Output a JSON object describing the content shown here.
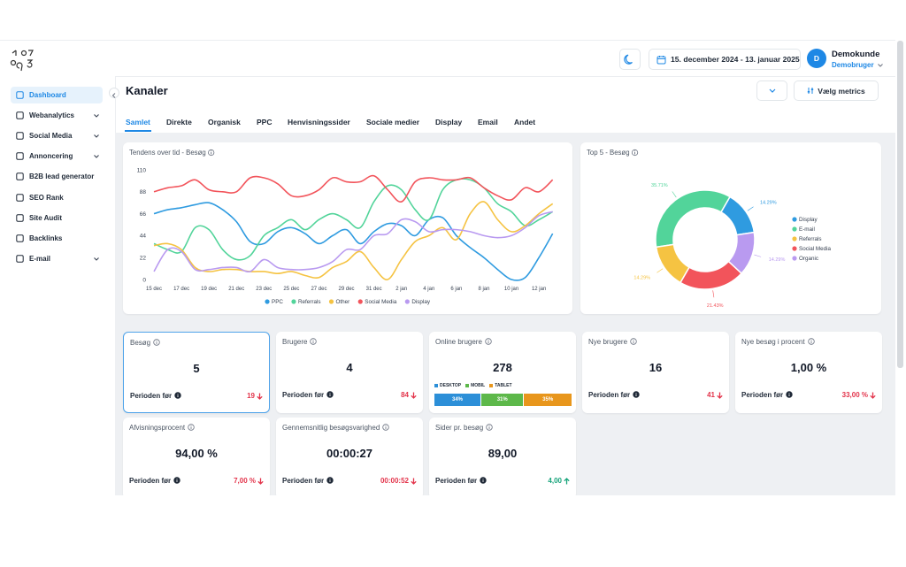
{
  "header": {
    "date_range": "15. december 2024 - 13. januar 2025",
    "avatar": "D",
    "user": "Demokunde",
    "role": "Demobruger"
  },
  "sidebar": [
    {
      "label": "Dashboard",
      "active": true
    },
    {
      "label": "Webanalytics",
      "expandable": true
    },
    {
      "label": "Social Media",
      "expandable": true
    },
    {
      "label": "Annoncering",
      "expandable": true
    },
    {
      "label": "B2B lead generator"
    },
    {
      "label": "SEO Rank"
    },
    {
      "label": "Site Audit"
    },
    {
      "label": "Backlinks"
    },
    {
      "label": "E-mail",
      "expandable": true
    }
  ],
  "page": {
    "title": "Kanaler",
    "metrics_button": "Vælg metrics"
  },
  "tabs": [
    {
      "label": "Samlet",
      "active": true
    },
    {
      "label": "Direkte"
    },
    {
      "label": "Organisk"
    },
    {
      "label": "PPC"
    },
    {
      "label": "Henvisningssider"
    },
    {
      "label": "Sociale medier"
    },
    {
      "label": "Display"
    },
    {
      "label": "Email"
    },
    {
      "label": "Andet"
    }
  ],
  "chart_data": [
    {
      "type": "line",
      "title": "Tendens over tid - Besøg",
      "x": [
        "15 dec",
        null,
        "17 dec",
        null,
        "19 dec",
        null,
        "21 dec",
        null,
        "23 dec",
        null,
        "25 dec",
        null,
        "27 dec",
        null,
        "29 dec",
        null,
        "31 dec",
        null,
        "2 jan",
        null,
        "4 jan",
        null,
        "6 jan",
        null,
        "8 jan",
        null,
        "10 jan",
        null,
        "12 jan",
        null
      ],
      "ylim": [
        0,
        110
      ],
      "yticks": [
        0,
        22,
        44,
        66,
        88,
        110
      ],
      "grid": false,
      "legend": "bottom",
      "series": [
        {
          "name": "PPC",
          "color": "#2f9be0",
          "values": [
            66,
            70,
            72,
            75,
            77,
            70,
            58,
            38,
            36,
            48,
            52,
            46,
            36,
            44,
            50,
            36,
            48,
            56,
            54,
            44,
            60,
            62,
            44,
            32,
            22,
            10,
            0,
            2,
            22,
            46
          ]
        },
        {
          "name": "Referrals",
          "color": "#52d49a",
          "values": [
            36,
            30,
            28,
            52,
            50,
            30,
            20,
            24,
            44,
            52,
            60,
            50,
            60,
            66,
            60,
            52,
            78,
            94,
            90,
            70,
            60,
            90,
            100,
            100,
            92,
            76,
            68,
            54,
            60,
            68
          ]
        },
        {
          "name": "Other",
          "color": "#f5c342",
          "values": [
            34,
            36,
            30,
            12,
            8,
            10,
            10,
            8,
            8,
            6,
            8,
            4,
            2,
            12,
            18,
            28,
            12,
            0,
            20,
            38,
            44,
            52,
            40,
            66,
            78,
            60,
            48,
            54,
            66,
            76
          ]
        },
        {
          "name": "Social Media",
          "color": "#f2545b",
          "values": [
            88,
            92,
            94,
            100,
            90,
            88,
            88,
            102,
            102,
            96,
            84,
            84,
            90,
            102,
            98,
            98,
            104,
            90,
            78,
            98,
            102,
            100,
            100,
            102,
            92,
            84,
            80,
            92,
            88,
            100
          ]
        },
        {
          "name": "Display",
          "color": "#b99af0",
          "values": [
            8,
            30,
            28,
            10,
            10,
            12,
            12,
            8,
            20,
            12,
            10,
            10,
            12,
            18,
            30,
            30,
            44,
            46,
            60,
            58,
            48,
            50,
            50,
            48,
            44,
            42,
            44,
            52,
            64,
            68
          ]
        }
      ]
    },
    {
      "type": "pie",
      "title": "Top 5 - Besøg",
      "donut": true,
      "legend": "right",
      "categories": [
        "Display",
        "E-mail",
        "Referrals",
        "Social Media",
        "Organic"
      ],
      "values": [
        14.29,
        35.71,
        14.29,
        21.43,
        14.29
      ],
      "value_labels": [
        "14.29%",
        "35.71%",
        "14.29%",
        "21.43%",
        "14.29%"
      ],
      "colors": [
        "#2f9be0",
        "#52d49a",
        "#f5c342",
        "#f2545b",
        "#b99af0"
      ]
    }
  ],
  "cards": [
    {
      "title": "Besøg",
      "value": 5,
      "previous_label": "Perioden før",
      "previous": 19,
      "trend": "down",
      "selected": true
    },
    {
      "title": "Brugere",
      "value": 4,
      "previous_label": "Perioden før",
      "previous": 84,
      "trend": "down"
    },
    {
      "title": "Online brugere",
      "value": 278,
      "bar": {
        "labels": [
          "DESKTOP",
          "MOBIL",
          "TABLET"
        ],
        "colors": [
          "#2c8fd8",
          "#5db84a",
          "#e8961c"
        ],
        "values": [
          34,
          31,
          35
        ],
        "value_labels": [
          "34%",
          "31%",
          "35%"
        ]
      }
    },
    {
      "title": "Nye brugere",
      "value": 16,
      "previous_label": "Perioden før",
      "previous": 41,
      "trend": "down"
    },
    {
      "title": "Nye besøg i procent",
      "value": "1,00 %",
      "previous_label": "Perioden før",
      "previous": "33,00 %",
      "trend": "down"
    },
    {
      "title": "Afvisningsprocent",
      "value": "94,00 %",
      "previous_label": "Perioden før",
      "previous": "7,00 %",
      "trend": "down"
    },
    {
      "title": "Gennemsnitlig besøgsvarighed",
      "value": "00:00:27",
      "previous_label": "Perioden før",
      "previous": "00:00:52",
      "trend": "down"
    },
    {
      "title": "Sider pr. besøg",
      "value": "89,00",
      "previous_label": "Perioden før",
      "previous": "4,00",
      "trend": "up"
    }
  ]
}
